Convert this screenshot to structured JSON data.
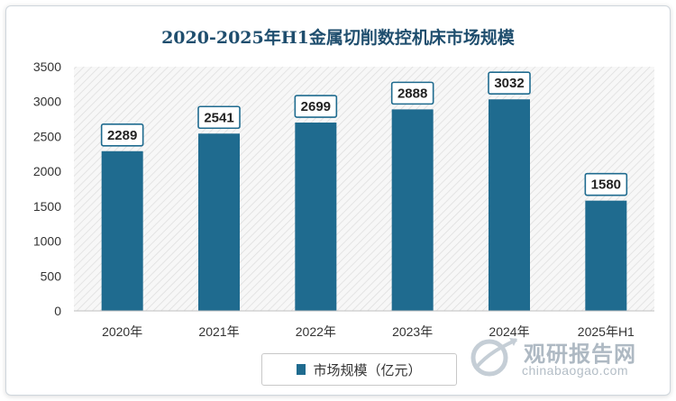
{
  "chart_data": {
    "type": "bar",
    "title": "2020-2025年H1金属切削数控机床市场规模",
    "categories": [
      "2020年",
      "2021年",
      "2022年",
      "2023年",
      "2024年",
      "2025年H1"
    ],
    "series": [
      {
        "name": "市场规模（亿元）",
        "values": [
          2289,
          2541,
          2699,
          2888,
          3032,
          1580
        ],
        "color": "#1f6b8f"
      }
    ],
    "ylim": [
      0,
      3500
    ],
    "yticks": [
      0,
      500,
      1000,
      1500,
      2000,
      2500,
      3000,
      3500
    ],
    "data_labels": [
      "2289",
      "2541",
      "2699",
      "2888",
      "3032",
      "1580"
    ],
    "legend": "bottom",
    "grid": false
  },
  "watermark": {
    "name_cn": "观研报告网",
    "domain": "chinabaogao.com"
  }
}
